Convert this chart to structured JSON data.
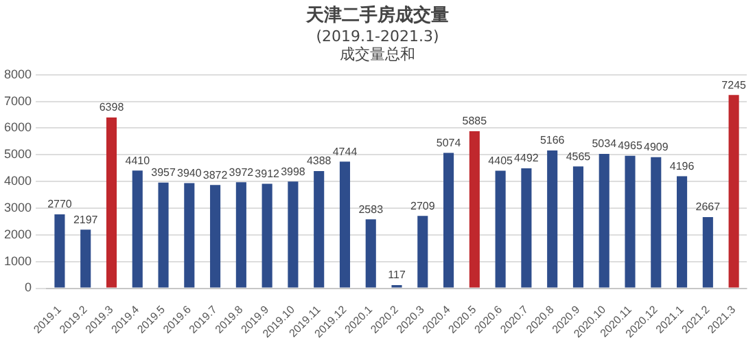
{
  "chart_data": {
    "type": "bar",
    "title": "天津二手房成交量",
    "subtitle": "(2019.1-2021.3)",
    "annotations": [
      "成交量总和"
    ],
    "categories": [
      "2019.1",
      "2019.2",
      "2019.3",
      "2019.4",
      "2019.5",
      "2019.6",
      "2019.7",
      "2019.8",
      "2019.9",
      "2019.10",
      "2019.11",
      "2019.12",
      "2020.1",
      "2020.2",
      "2020.3",
      "2020.4",
      "2020.5",
      "2020.6",
      "2020.7",
      "2020.8",
      "2020.9",
      "2020.10",
      "2020.11",
      "2020.12",
      "2021.1",
      "2021.2",
      "2021.3"
    ],
    "values": [
      2770,
      2197,
      6398,
      4410,
      3957,
      3940,
      3872,
      3972,
      3912,
      3998,
      4388,
      4744,
      2583,
      117,
      2709,
      5074,
      5885,
      4405,
      4492,
      5166,
      4565,
      5034,
      4965,
      4909,
      4196,
      2667,
      7245
    ],
    "colors": [
      "#2e4d8c",
      "#2e4d8c",
      "#c0282d",
      "#2e4d8c",
      "#2e4d8c",
      "#2e4d8c",
      "#2e4d8c",
      "#2e4d8c",
      "#2e4d8c",
      "#2e4d8c",
      "#2e4d8c",
      "#2e4d8c",
      "#2e4d8c",
      "#2e4d8c",
      "#2e4d8c",
      "#2e4d8c",
      "#c0282d",
      "#2e4d8c",
      "#2e4d8c",
      "#2e4d8c",
      "#2e4d8c",
      "#2e4d8c",
      "#2e4d8c",
      "#2e4d8c",
      "#2e4d8c",
      "#2e4d8c",
      "#c0282d"
    ],
    "ylim": [
      0,
      8000
    ],
    "yticks": [
      0,
      1000,
      2000,
      3000,
      4000,
      5000,
      6000,
      7000,
      8000
    ],
    "grid": "y",
    "data_labels": true,
    "legend": false
  }
}
